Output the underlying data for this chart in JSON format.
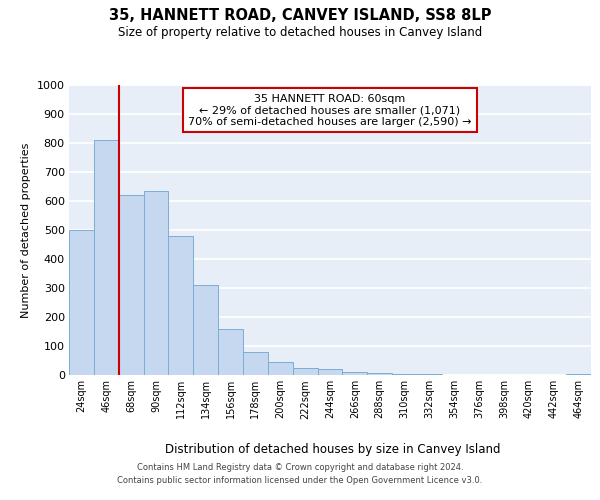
{
  "title": "35, HANNETT ROAD, CANVEY ISLAND, SS8 8LP",
  "subtitle": "Size of property relative to detached houses in Canvey Island",
  "xlabel": "Distribution of detached houses by size in Canvey Island",
  "ylabel": "Number of detached properties",
  "bar_color": "#c5d8f0",
  "bar_edge_color": "#7badd4",
  "background_color": "#e8eef8",
  "grid_color": "#ffffff",
  "categories": [
    "24sqm",
    "46sqm",
    "68sqm",
    "90sqm",
    "112sqm",
    "134sqm",
    "156sqm",
    "178sqm",
    "200sqm",
    "222sqm",
    "244sqm",
    "266sqm",
    "288sqm",
    "310sqm",
    "332sqm",
    "354sqm",
    "376sqm",
    "398sqm",
    "420sqm",
    "442sqm",
    "464sqm"
  ],
  "values": [
    500,
    810,
    620,
    635,
    480,
    310,
    160,
    80,
    45,
    25,
    20,
    10,
    8,
    3,
    2,
    1,
    0,
    0,
    0,
    0,
    5
  ],
  "ylim": [
    0,
    1000
  ],
  "yticks": [
    0,
    100,
    200,
    300,
    400,
    500,
    600,
    700,
    800,
    900,
    1000
  ],
  "property_line_color": "#cc0000",
  "property_line_x": 2,
  "annotation_text": "35 HANNETT ROAD: 60sqm\n← 29% of detached houses are smaller (1,071)\n70% of semi-detached houses are larger (2,590) →",
  "annotation_box_color": "#ffffff",
  "annotation_box_edge": "#cc0000",
  "footer_line1": "Contains HM Land Registry data © Crown copyright and database right 2024.",
  "footer_line2": "Contains public sector information licensed under the Open Government Licence v3.0."
}
